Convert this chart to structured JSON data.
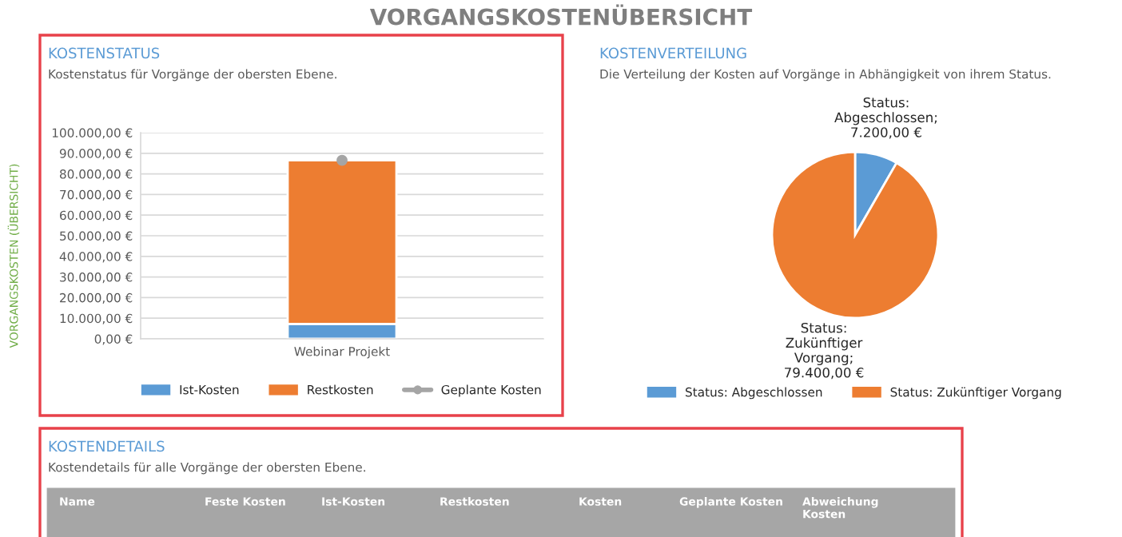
{
  "chart_data": [
    {
      "type": "bar",
      "title": "KOSTENSTATUS",
      "subtitle": "Kostenstatus für Vorgänge der obersten Ebene.",
      "categories": [
        "Webinar Projekt"
      ],
      "stacked": true,
      "series": [
        {
          "name": "Ist-Kosten",
          "color": "#5b9bd5",
          "values": [
            7200
          ]
        },
        {
          "name": "Restkosten",
          "color": "#ed7d31",
          "values": [
            79400
          ]
        },
        {
          "name": "Geplante Kosten",
          "type": "line",
          "color": "#a5a5a5",
          "values": [
            86600
          ]
        }
      ],
      "marker": "circle",
      "ylim": [
        0,
        100000
      ],
      "yticks": [
        {
          "value": 0,
          "label": "0,00 €"
        },
        {
          "value": 10000,
          "label": "10.000,00 €"
        },
        {
          "value": 20000,
          "label": "20.000,00 €"
        },
        {
          "value": 30000,
          "label": "30.000,00 €"
        },
        {
          "value": 40000,
          "label": "40.000,00 €"
        },
        {
          "value": 50000,
          "label": "50.000,00 €"
        },
        {
          "value": 60000,
          "label": "60.000,00 €"
        },
        {
          "value": 70000,
          "label": "70.000,00 €"
        },
        {
          "value": 80000,
          "label": "80.000,00 €"
        },
        {
          "value": 90000,
          "label": "90.000,00 €"
        },
        {
          "value": 100000,
          "label": "100.000,00 €"
        }
      ],
      "grid": "y",
      "legend": "bottom",
      "annotations": [
        "VORGANGSKOSTENÜBERSICHT",
        "VORGANGSKOSTEN (ÜBERSICHT)"
      ]
    },
    {
      "type": "pie",
      "title": "KOSTENVERTEILUNG",
      "subtitle": "Die Verteilung der Kosten auf Vorgänge in Abhängigkeit von ihrem Status.",
      "categories": [
        "Status: Abgeschlossen",
        "Status: Zukünftiger Vorgang"
      ],
      "values": [
        7200,
        79400
      ],
      "colors": [
        "#5b9bd5",
        "#ed7d31"
      ],
      "value_labels": [
        "Status:\nAbgeschlossen;\n7.200,00 €",
        "Status:\nZukünftiger\nVorgang;\n79.400,00 €"
      ],
      "legend": "bottom"
    },
    {
      "type": "other",
      "title": "KOSTENDETAILS",
      "subtitle": "Kostendetails für alle Vorgänge der obersten Ebene.",
      "annotations": [
        "Name",
        "Feste Kosten",
        "Ist-Kosten",
        "Restkosten",
        "Kosten",
        "Geplante Kosten",
        "Abweichung\nKosten"
      ]
    }
  ]
}
